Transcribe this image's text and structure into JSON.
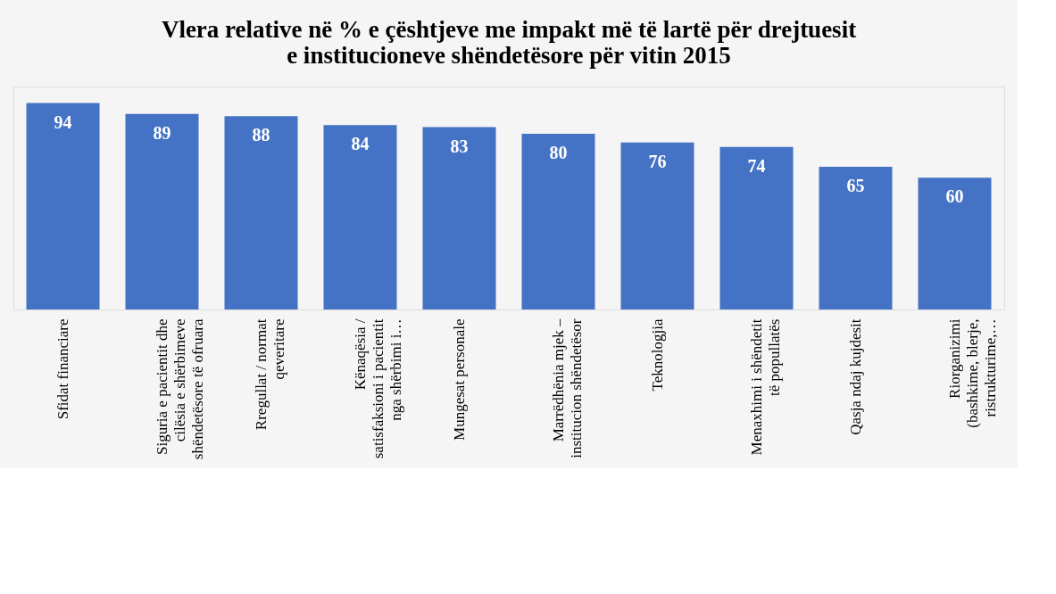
{
  "chart_data": {
    "type": "bar",
    "title": "Vlera relative në % e çështjeve me impakt më të lartë për drejtuesit\ne institucioneve shëndetësore për vitin 2015",
    "categories": [
      "Sfidat financiare",
      "Siguria e pacientit dhe\ncilësia e shërbimeve\nshëndetësore të ofruara",
      "Rregullat / normat\nqeveritare",
      "Kënaqësia /\nsatisfaksioni i pacientit\nnga shërbimi i…",
      "Mungesat personale",
      "Marrëdhënia mjek –\ninstitucion shëndetësor",
      "Teknologjia",
      "Menaxhimi i shëndetit\ntë popullatës",
      "Qasja ndaj kujdesit",
      "Riorganizimi\n(bashkime, blerje,\nristrukturime,…"
    ],
    "values": [
      94,
      89,
      88,
      84,
      83,
      80,
      76,
      74,
      65,
      60
    ],
    "color": "#4472c4",
    "data_labels": true
  }
}
